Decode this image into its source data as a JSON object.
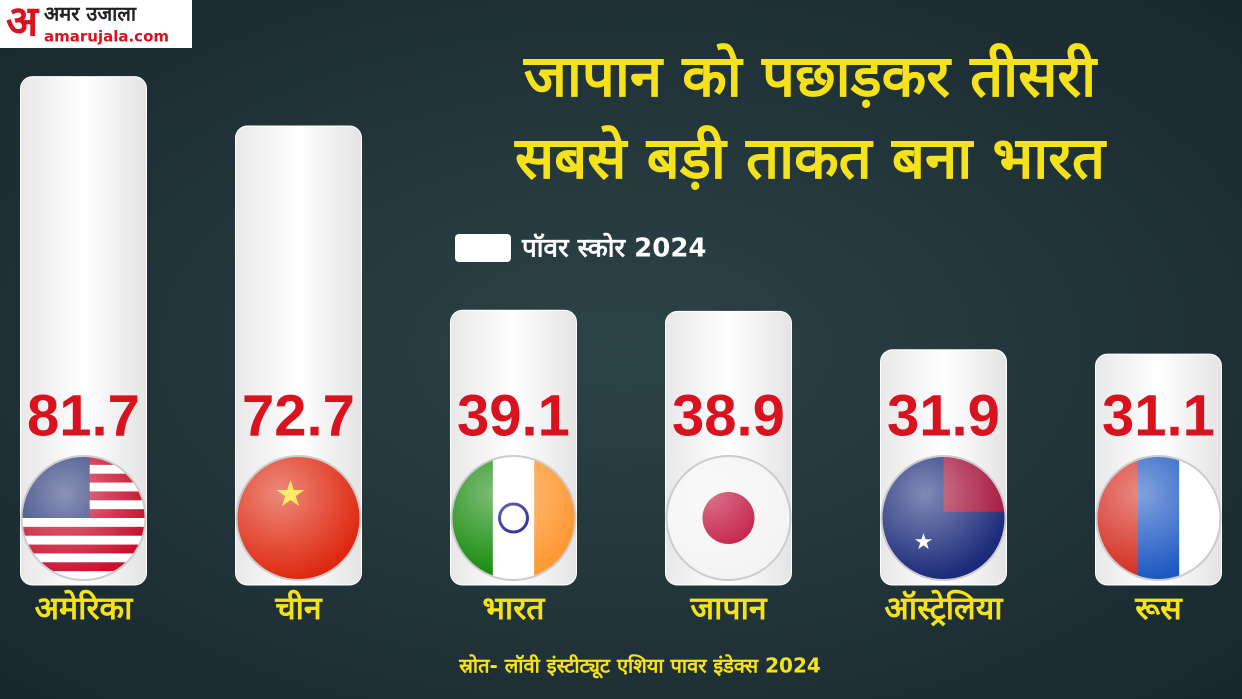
{
  "logo": {
    "mark": "अ",
    "name": "अमर उजाला",
    "site": "amarujala.com"
  },
  "chart_data": {
    "type": "bar",
    "title": [
      "जापान को पछाड़कर तीसरी",
      "सबसे बड़ी ताकत बना भारत"
    ],
    "categories": [
      "अमेरिका",
      "चीन",
      "भारत",
      "जापान",
      "ऑस्ट्रेलिया",
      "रूस"
    ],
    "series": [
      {
        "name": "पॉवर स्कोर 2024",
        "color": "#ffffff",
        "values": [
          81.7,
          72.7,
          39.1,
          38.9,
          31.9,
          31.1
        ]
      }
    ],
    "ylim": [
      -11,
      82
    ],
    "source": "स्रोत- लॉवी इंस्टीट्यूट एशिया पावर इंडेक्स 2024"
  }
}
